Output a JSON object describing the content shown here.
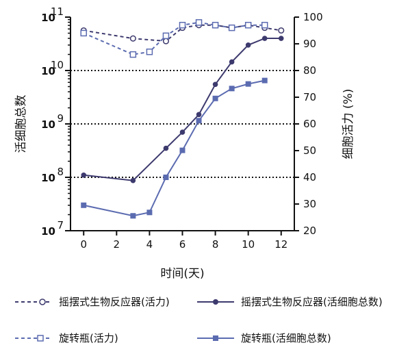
{
  "chart_data": {
    "type": "line",
    "x": [
      0,
      3,
      4,
      5,
      6,
      7,
      8,
      9,
      10,
      11,
      12
    ],
    "xlabel": "时间(天)",
    "ylabel_left": "活细胞总数",
    "ylabel_right": "细胞活力 (%)",
    "xlim": [
      -0.8,
      12.8
    ],
    "xticks": [
      0,
      2,
      4,
      6,
      8,
      10,
      12
    ],
    "ylim_left_log10": [
      7,
      11
    ],
    "yticks_left": [
      {
        "base": "10",
        "exp": "7",
        "value": 7
      },
      {
        "base": "10",
        "exp": "8",
        "value": 8
      },
      {
        "base": "10",
        "exp": "9",
        "value": 9
      },
      {
        "base": "10",
        "exp": "10",
        "value": 10
      },
      {
        "base": "10",
        "exp": "11",
        "value": 11
      }
    ],
    "ylim_right": [
      20,
      100
    ],
    "yticks_right": [
      20,
      30,
      40,
      50,
      60,
      70,
      80,
      90,
      100
    ],
    "gridlines_left_log10": [
      8,
      9,
      10
    ],
    "series": [
      {
        "name": "摇摆式生物反应器(活力)",
        "axis": "right",
        "style": "dashed",
        "marker": "circle-open",
        "color": "#3d3a6e",
        "values": [
          95,
          92,
          null,
          91,
          96,
          97,
          97,
          96,
          97,
          96,
          95
        ]
      },
      {
        "name": "摇摆式生物反应器(活细胞总数)",
        "axis": "left",
        "style": "solid",
        "marker": "circle-filled",
        "color": "#3d3a6e",
        "values": [
          110000000.0,
          87000000.0,
          null,
          350000000.0,
          700000000.0,
          1500000000.0,
          5500000000.0,
          14500000000.0,
          30000000000.0,
          40000000000.0,
          40000000000.0
        ]
      },
      {
        "name": "旋转瓶(活力)",
        "axis": "right",
        "style": "dashed",
        "marker": "square-open",
        "color": "#5b6bb0",
        "values": [
          94,
          86,
          87,
          93,
          97,
          98,
          97,
          96,
          97,
          97,
          null
        ]
      },
      {
        "name": "旋转瓶(活细胞总数)",
        "axis": "left",
        "style": "solid",
        "marker": "square-filled",
        "color": "#5b6bb0",
        "values": [
          30000000.0,
          19000000.0,
          22000000.0,
          100000000.0,
          320000000.0,
          1150000000.0,
          3000000000.0,
          4600000000.0,
          5600000000.0,
          6500000000.0,
          null
        ]
      }
    ]
  }
}
